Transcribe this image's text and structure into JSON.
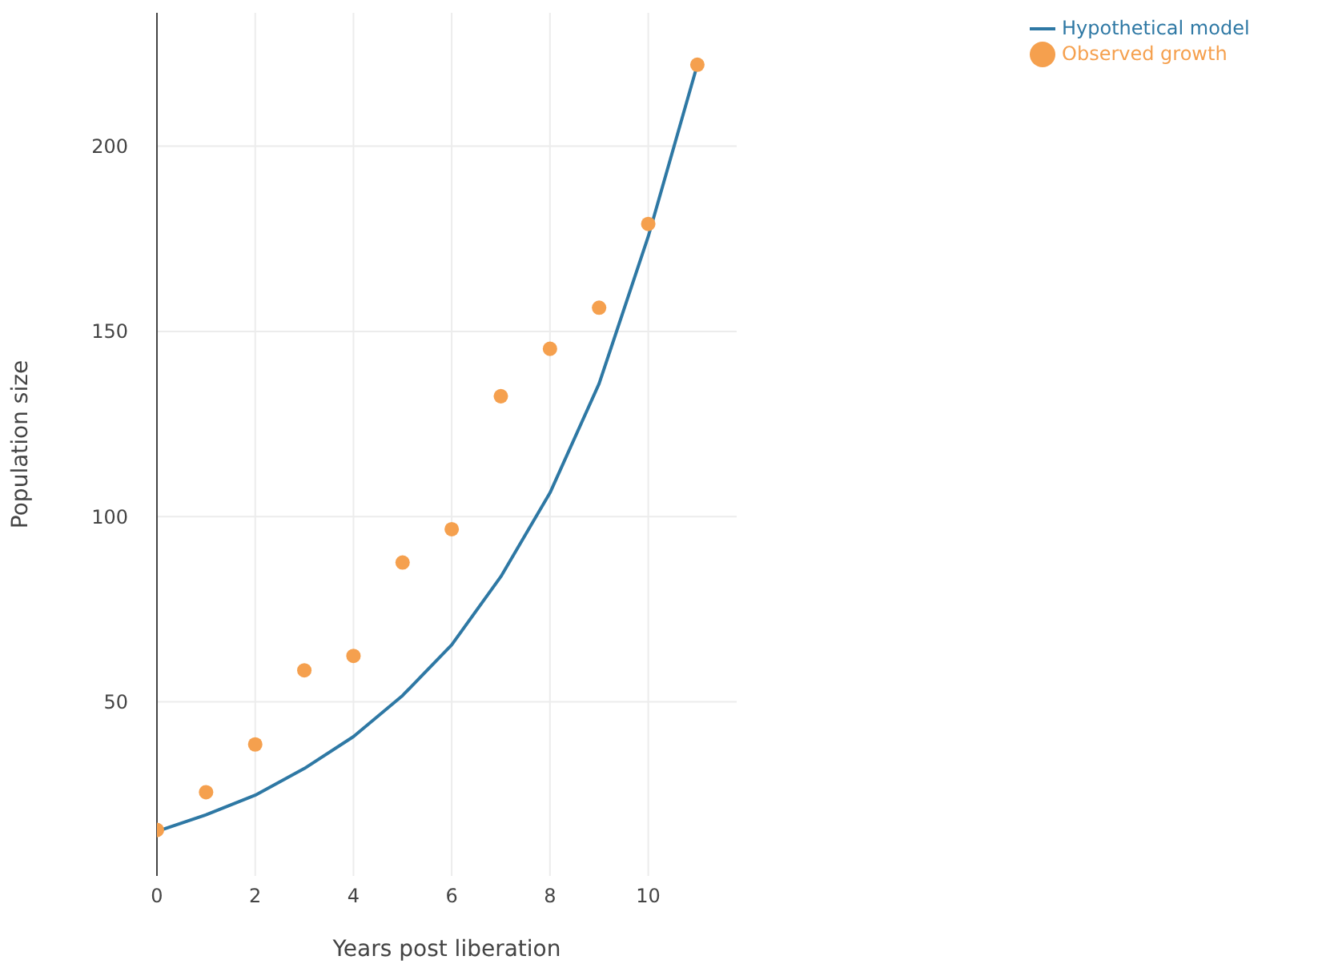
{
  "chart_data": {
    "type": "line",
    "xlabel": "Years post liberation",
    "ylabel": "Population size",
    "x": [
      0,
      1,
      2,
      3,
      4,
      5,
      6,
      7,
      8,
      9,
      10,
      11
    ],
    "series": [
      {
        "name": "Hypothetical model",
        "marker": "none",
        "color": "#2e78a4",
        "values": [
          15,
          19.5,
          24.8,
          32,
          40.6,
          51.7,
          65.4,
          83.8,
          106.4,
          135.9,
          175.6,
          222
        ]
      },
      {
        "name": "Observed growth",
        "type": "scatter",
        "marker": "circle",
        "color": "#f5a04e",
        "values": [
          15.4,
          25.6,
          38.5,
          58.5,
          62.4,
          87.6,
          96.6,
          132.5,
          145.3,
          156.4,
          179,
          222
        ]
      }
    ],
    "xlim": [
      0,
      11.8
    ],
    "xticks": [
      0,
      2,
      4,
      6,
      8,
      10
    ],
    "ylim": [
      3,
      236
    ],
    "yticks": [
      50,
      100,
      150,
      200
    ],
    "grid": true,
    "legend": "top right",
    "line_style": "solid"
  }
}
